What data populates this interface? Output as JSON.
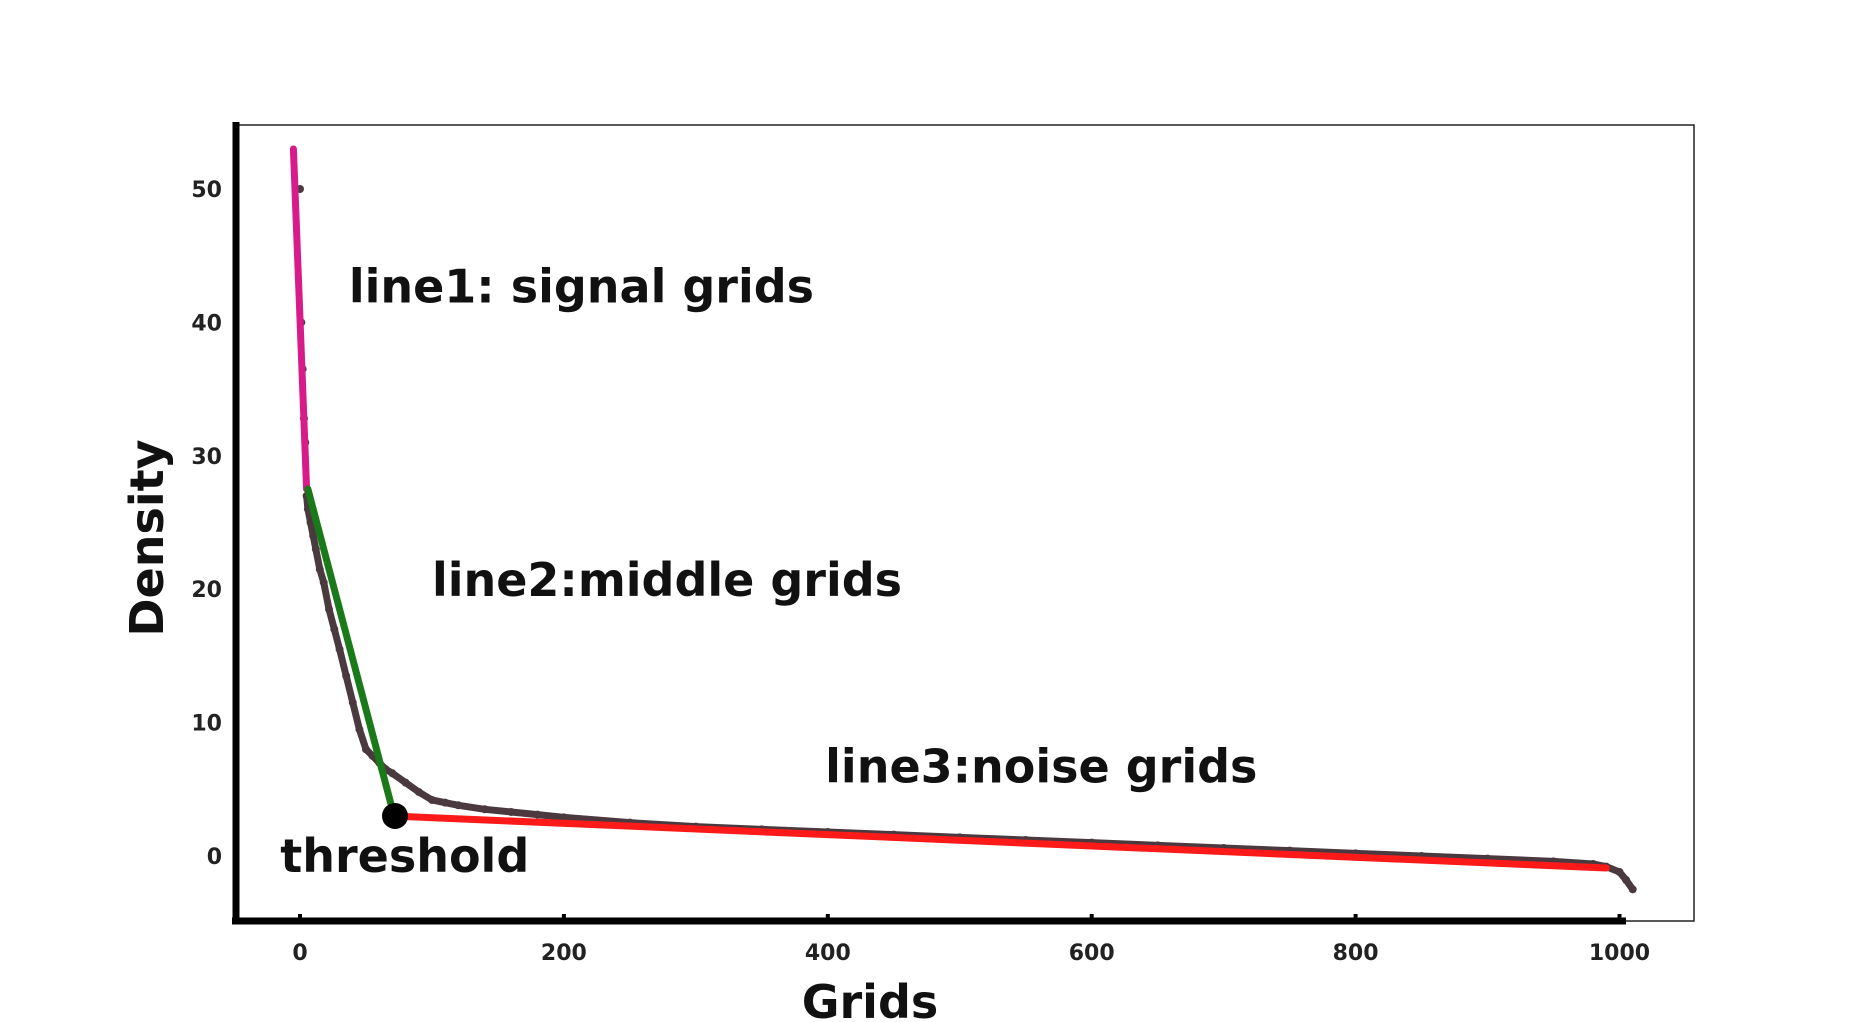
{
  "chart_data": {
    "type": "scatter",
    "title": "",
    "xlabel": "Grids",
    "ylabel": "Density",
    "xlim": [
      -50,
      1060
    ],
    "ylim": [
      -5,
      54
    ],
    "x_ticks": [
      0,
      200,
      400,
      600,
      800,
      1000
    ],
    "y_ticks": [
      0,
      10,
      20,
      30,
      40,
      50
    ],
    "grid": false,
    "series": [
      {
        "role": "points",
        "color": "#4a3a40",
        "x": [
          0,
          1,
          2,
          3,
          4,
          5,
          6,
          8,
          10,
          12,
          15,
          18,
          22,
          26,
          30,
          35,
          40,
          45,
          50,
          55,
          60,
          65,
          70,
          80,
          90,
          100,
          110,
          120,
          140,
          160,
          180,
          200,
          250,
          300,
          350,
          400,
          450,
          500,
          550,
          600,
          650,
          700,
          750,
          800,
          850,
          900,
          950,
          980,
          990,
          1000,
          1005,
          1010
        ],
        "y": [
          50.0,
          40.0,
          36.5,
          32.8,
          31.0,
          27.0,
          26.0,
          25.0,
          24.0,
          23.0,
          21.5,
          20.5,
          18.5,
          17.0,
          15.5,
          13.5,
          11.5,
          9.5,
          8.0,
          7.5,
          7.0,
          6.5,
          6.2,
          5.5,
          4.8,
          4.2,
          4.0,
          3.8,
          3.5,
          3.3,
          3.1,
          2.9,
          2.5,
          2.2,
          2.0,
          1.8,
          1.6,
          1.4,
          1.2,
          1.0,
          0.8,
          0.6,
          0.4,
          0.2,
          0.0,
          -0.2,
          -0.4,
          -0.6,
          -0.8,
          -1.2,
          -1.8,
          -2.5
        ]
      },
      {
        "role": "fit-line",
        "name": "line1",
        "color": "#d81b8a",
        "x": [
          -5,
          5
        ],
        "y": [
          53.0,
          27.5
        ]
      },
      {
        "role": "fit-line",
        "name": "line2",
        "color": "#1a7a1a",
        "x": [
          6,
          70
        ],
        "y": [
          27.5,
          3.5
        ]
      },
      {
        "role": "fit-line",
        "name": "line3",
        "color": "#ff1a1a",
        "x": [
          70,
          990
        ],
        "y": [
          3.0,
          -0.9
        ]
      }
    ],
    "threshold_point": {
      "x": 72,
      "y": 3.0
    },
    "annotations": [
      {
        "text": "line1: signal grids",
        "x": 37,
        "y": 41.5
      },
      {
        "text": "line2:middle grids",
        "x": 100,
        "y": 19.5
      },
      {
        "text": "line3:noise grids",
        "x": 398,
        "y": 5.5
      },
      {
        "text": "threshold",
        "x": -15,
        "y": -1.2
      }
    ]
  }
}
